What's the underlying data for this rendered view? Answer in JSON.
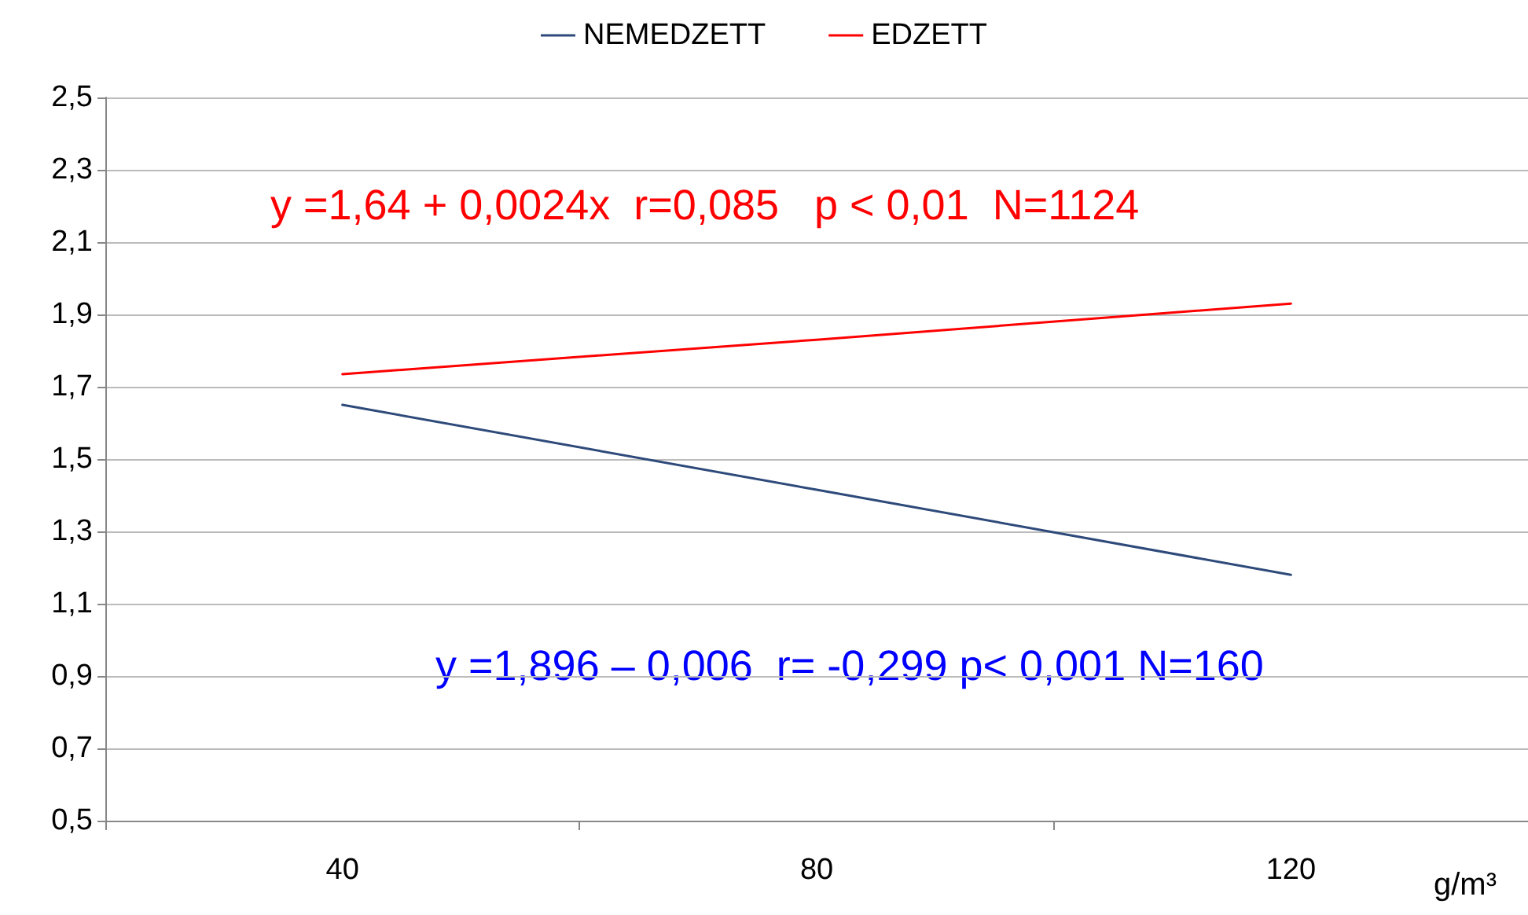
{
  "chart_data": {
    "type": "line",
    "categories": [
      "40",
      "80",
      "120"
    ],
    "xlabel": "g/m³",
    "series": [
      {
        "name": "NEMEDZETT",
        "color": "#2e4a7a",
        "values": [
          1.65,
          1.415,
          1.18
        ]
      },
      {
        "name": "EDZETT",
        "color": "#ff0000",
        "values": [
          1.735,
          1.83,
          1.93
        ]
      }
    ],
    "ylim": [
      0.5,
      2.5
    ],
    "yticks": [
      {
        "value": 0.5,
        "label": "0,5"
      },
      {
        "value": 0.7,
        "label": "0,7"
      },
      {
        "value": 0.9,
        "label": "0,9"
      },
      {
        "value": 1.1,
        "label": "1,1"
      },
      {
        "value": 1.3,
        "label": "1,3"
      },
      {
        "value": 1.5,
        "label": "1,5"
      },
      {
        "value": 1.7,
        "label": "1,7"
      },
      {
        "value": 1.9,
        "label": "1,9"
      },
      {
        "value": 2.1,
        "label": "2,1"
      },
      {
        "value": 2.3,
        "label": "2,3"
      },
      {
        "value": 2.5,
        "label": "2,5"
      }
    ],
    "grid": "y",
    "legend": "top",
    "annotations": [
      "y =1,64 + 0,0024x  r=0,085   p < 0,01  N=1124",
      "y =1,896 – 0,006  r= -0,299 p< 0,001 N=160"
    ]
  }
}
